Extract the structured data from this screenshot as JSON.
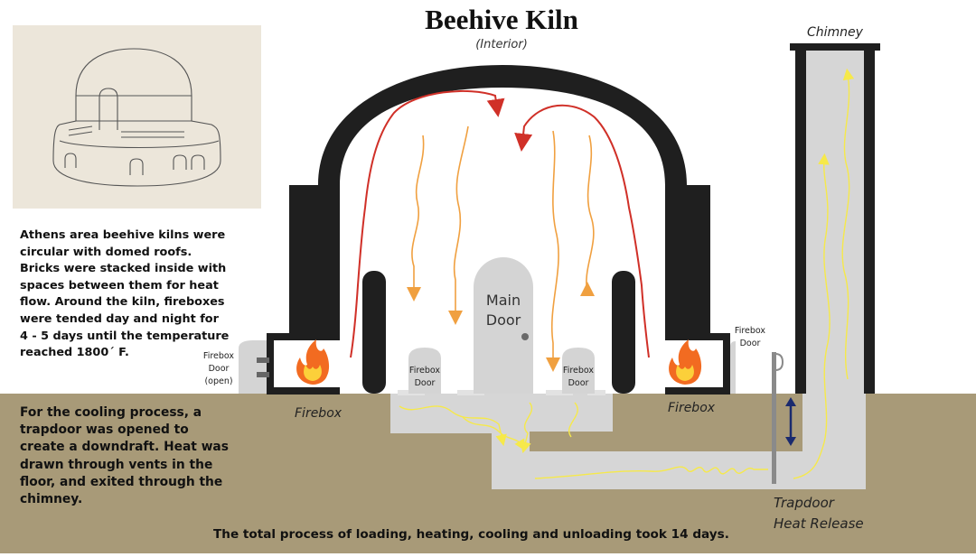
{
  "title": "Beehive Kiln",
  "subtitle": "(Interior)",
  "description": "Athens area beehive kilns were circular with domed roofs. Bricks were stacked inside with spaces between them for heat flow. Around the kiln, fireboxes were tended day and night for 4 - 5 days until the temperature reached 1800´ F.",
  "cooling_text": "For the cooling process, a trapdoor was opened to create a downdraft. Heat was drawn through vents in the floor, and exited through the chimney.",
  "footer": "The total process of loading, heating, cooling and unloading took 14 days.",
  "labels": {
    "chimney": "Chimney",
    "main_door_line1": "Main",
    "main_door_line2": "Door",
    "firebox_door_line1": "Firebox",
    "firebox_door_line2": "Door",
    "firebox_door_open_line1": "Firebox",
    "firebox_door_open_line2": "Door",
    "firebox_door_open_line3": "(open)",
    "firebox": "Firebox",
    "trapdoor_line1": "Trapdoor",
    "trapdoor_line2": "Heat Release"
  },
  "colors": {
    "ground": "#a89a78",
    "kiln_wall": "#1f1f1f",
    "door_gray": "#d4d4d4",
    "heat_arrow_red": "#d03028",
    "heat_arrow_orange": "#f0a040",
    "flow_yellow": "#f6e94a",
    "trapdoor_arrow": "#1a2a6e",
    "fire_orange": "#f26b21"
  }
}
